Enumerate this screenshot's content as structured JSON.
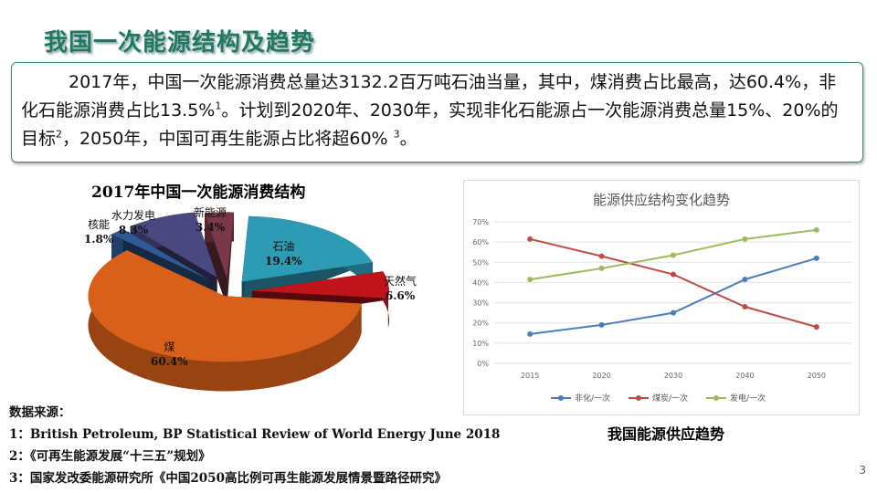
{
  "slide": {
    "title": "我国一次能源结构及趋势",
    "summary": [
      {
        "text": "2017年，中国一次能源消费总量达3132.2百万吨石油当量，其中，煤消费占比最高，达60.4%，非化石能源消费占比13.5%"
      },
      {
        "sup": "1"
      },
      {
        "text": "。计划到2020年、2030年，实现非化石能源占一次能源消费总量15%、20%的目标"
      },
      {
        "sup": "2"
      },
      {
        "text": "，2050年，中国可再生能源占比将超60% "
      },
      {
        "sup": "3"
      },
      {
        "text": "。"
      }
    ],
    "sources": {
      "heading": "数据来源：",
      "items": [
        "1：British Petroleum, BP Statistical Review of World Energy June 2018",
        "2：《可再生能源发展“十三五”规划》",
        "3：国家发改委能源研究所《中国2050高比例可再生能源发展情景暨路径研究》"
      ]
    },
    "page_number": "3",
    "line_caption": "我国能源供应趋势"
  },
  "chart_data": [
    {
      "type": "pie",
      "title": "2017年中国一次能源消费结构",
      "style": "3d-exploded",
      "slices": [
        {
          "label": "石油",
          "value": 19.4,
          "display": "19.4%",
          "color": "#2e9bb5"
        },
        {
          "label": "天然气",
          "value": 6.6,
          "display": "6.6%",
          "color": "#c0141c"
        },
        {
          "label": "煤",
          "value": 60.4,
          "display": "60.4%",
          "color": "#d9601a"
        },
        {
          "label": "核能",
          "value": 1.8,
          "display": "1.8%",
          "color": "#2f5a94"
        },
        {
          "label": "水力发电",
          "value": 8.3,
          "display": "8.3%",
          "color": "#4a4880"
        },
        {
          "label": "新能源",
          "value": 3.4,
          "display": "3.4%",
          "color": "#7a3848"
        }
      ]
    },
    {
      "type": "line",
      "title": "能源供应结构变化趋势",
      "categories": [
        "2015",
        "2020",
        "2030",
        "2040",
        "2050"
      ],
      "ylim": [
        0,
        70
      ],
      "yticks": [
        "0%",
        "10%",
        "20%",
        "30%",
        "40%",
        "50%",
        "60%",
        "70%"
      ],
      "grid": true,
      "legend": "bottom",
      "series": [
        {
          "name": "非化/一次",
          "values": [
            14.5,
            19,
            25,
            41.5,
            52
          ],
          "color": "#4a7ebb"
        },
        {
          "name": "煤炭/一次",
          "values": [
            61.5,
            53,
            44,
            28,
            18
          ],
          "color": "#be4b48"
        },
        {
          "name": "发电/一次",
          "values": [
            41.5,
            47,
            53.5,
            61.5,
            66
          ],
          "color": "#9bbb59"
        }
      ]
    }
  ]
}
